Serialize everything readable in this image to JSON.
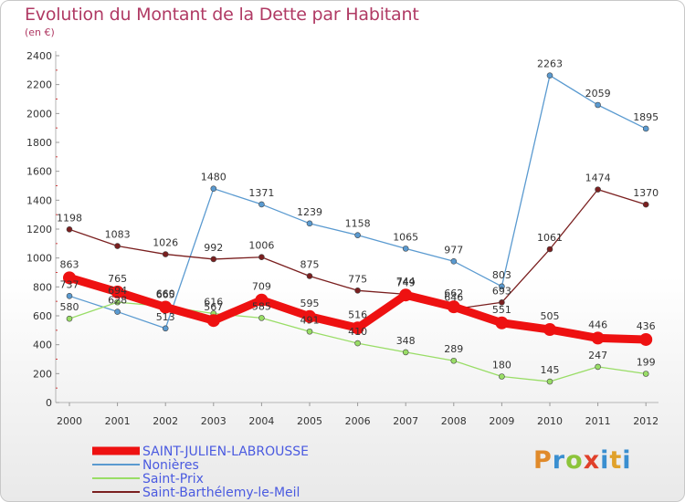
{
  "chart_data": {
    "type": "line",
    "title": "Evolution du Montant de la Dette par Habitant",
    "subtitle": "(en €)",
    "xlabel": "",
    "ylabel": "",
    "ylim": [
      0,
      2400
    ],
    "yticks": [
      0,
      200,
      400,
      600,
      800,
      1000,
      1200,
      1400,
      1600,
      1800,
      2000,
      2200,
      2400
    ],
    "categories": [
      "2000",
      "2001",
      "2002",
      "2003",
      "2004",
      "2005",
      "2006",
      "2007",
      "2008",
      "2009",
      "2010",
      "2011",
      "2012"
    ],
    "series": [
      {
        "name": "SAINT-JULIEN-LABROUSSE",
        "color": "#ee1111",
        "highlight": true,
        "values": [
          863,
          765,
          660,
          567,
          709,
          595,
          516,
          744,
          662,
          551,
          505,
          446,
          436
        ]
      },
      {
        "name": "Nonières",
        "color": "#5a9ad0",
        "highlight": false,
        "values": [
          737,
          628,
          513,
          1480,
          1371,
          1239,
          1158,
          1065,
          977,
          803,
          2263,
          2059,
          1895
        ]
      },
      {
        "name": "Saint-Prix",
        "color": "#99dd66",
        "highlight": false,
        "values": [
          580,
          694,
          665,
          616,
          585,
          491,
          410,
          348,
          289,
          180,
          145,
          247,
          199
        ]
      },
      {
        "name": "Saint-Barthélemy-le-Meil",
        "color": "#7a1f1f",
        "highlight": false,
        "values": [
          1198,
          1083,
          1026,
          992,
          1006,
          875,
          775,
          749,
          646,
          693,
          1061,
          1474,
          1370
        ]
      }
    ],
    "legend_position": "bottom-left",
    "grid": false
  },
  "logo": {
    "p": "P",
    "r": "r",
    "o": "o",
    "x": "x",
    "i": "i",
    "t": "t",
    "i2": "i"
  }
}
